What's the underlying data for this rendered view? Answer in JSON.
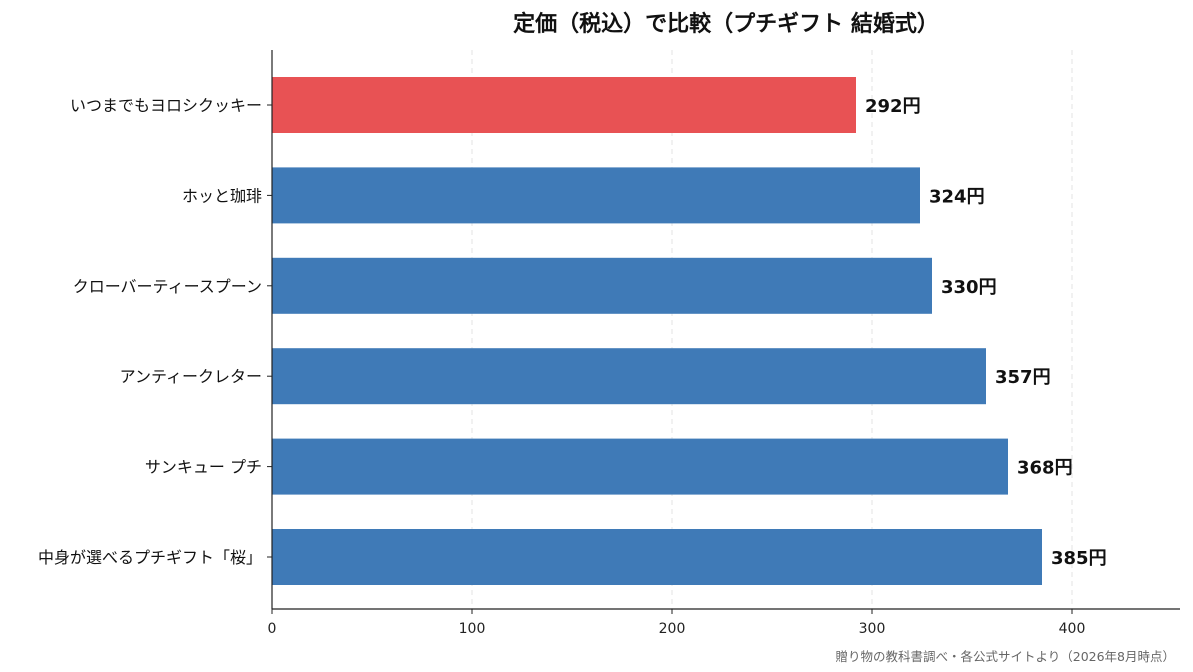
{
  "chart_data": {
    "type": "bar",
    "orientation": "horizontal",
    "title": "定価（税込）で比較（プチギフト 結婚式）",
    "categories": [
      "いつまでもヨロシクッキー",
      "ホッと珈琲",
      "クローバーティースプーン",
      "アンティークレター",
      "サンキュー プチ",
      "中身が選べるプチギフト「桜」"
    ],
    "values": [
      292,
      324,
      330,
      357,
      368,
      385
    ],
    "value_labels": [
      "292円",
      "324円",
      "330円",
      "357円",
      "368円",
      "385円"
    ],
    "colors": [
      "#e85254",
      "#3f7ab7",
      "#3f7ab7",
      "#3f7ab7",
      "#3f7ab7",
      "#3f7ab7"
    ],
    "xlim": [
      0,
      454
    ],
    "xticks": [
      0,
      100,
      200,
      300,
      400
    ],
    "xlabel": "",
    "ylabel": "",
    "grid": "vertical dashed",
    "source": "贈り物の教科書調べ・各公式サイトより（2026年8月時点）"
  }
}
